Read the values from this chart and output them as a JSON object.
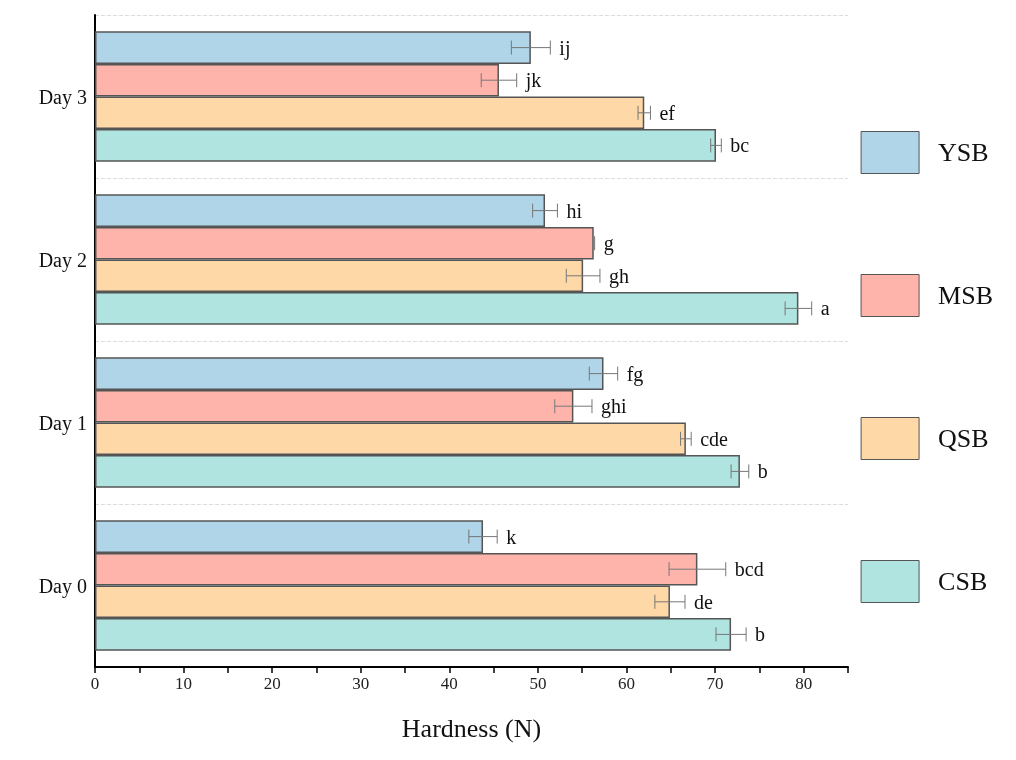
{
  "chart_data": {
    "type": "bar",
    "orientation": "horizontal",
    "xlabel": "Hardness (N)",
    "categories": [
      "Day 3",
      "Day 2",
      "Day 1",
      "Day 0"
    ],
    "series": [
      {
        "name": "YSB",
        "color": "#b0d4e8",
        "values": [
          49.2,
          50.8,
          57.4,
          43.8
        ],
        "errors": [
          2.2,
          1.4,
          1.6,
          1.6
        ],
        "value_labels": [
          "ij",
          "hi",
          "fg",
          "k"
        ]
      },
      {
        "name": "MSB",
        "color": "#ffb4ab",
        "values": [
          45.6,
          56.3,
          54.0,
          68.0
        ],
        "errors": [
          2.0,
          0.1,
          2.1,
          3.2
        ],
        "value_labels": [
          "jk",
          "g",
          "ghi",
          "bcd"
        ]
      },
      {
        "name": "QSB",
        "color": "#ffd8a8",
        "values": [
          62.0,
          55.1,
          66.7,
          64.9
        ],
        "errors": [
          0.7,
          1.9,
          0.6,
          1.7
        ],
        "value_labels": [
          "ef",
          "gh",
          "cde",
          "de"
        ]
      },
      {
        "name": "CSB",
        "color": "#b0e4e0",
        "values": [
          70.1,
          79.4,
          72.8,
          71.8
        ],
        "errors": [
          0.6,
          1.5,
          1.0,
          1.7
        ],
        "value_labels": [
          "bc",
          "a",
          "b",
          "b"
        ]
      }
    ],
    "xlim": [
      0,
      85
    ],
    "xticks": [
      0,
      {
        "value": 5,
        "label": null
      },
      10,
      {
        "value": 15,
        "label": null
      },
      20,
      {
        "value": 25,
        "label": null
      },
      30,
      {
        "value": 35,
        "label": null
      },
      40,
      {
        "value": 45,
        "label": null
      },
      50,
      {
        "value": 55,
        "label": null
      },
      60,
      {
        "value": 65,
        "label": null
      },
      70,
      {
        "value": 75,
        "label": null
      },
      80,
      {
        "value": 85,
        "label": null
      }
    ],
    "grid": "y",
    "legend": "right"
  }
}
